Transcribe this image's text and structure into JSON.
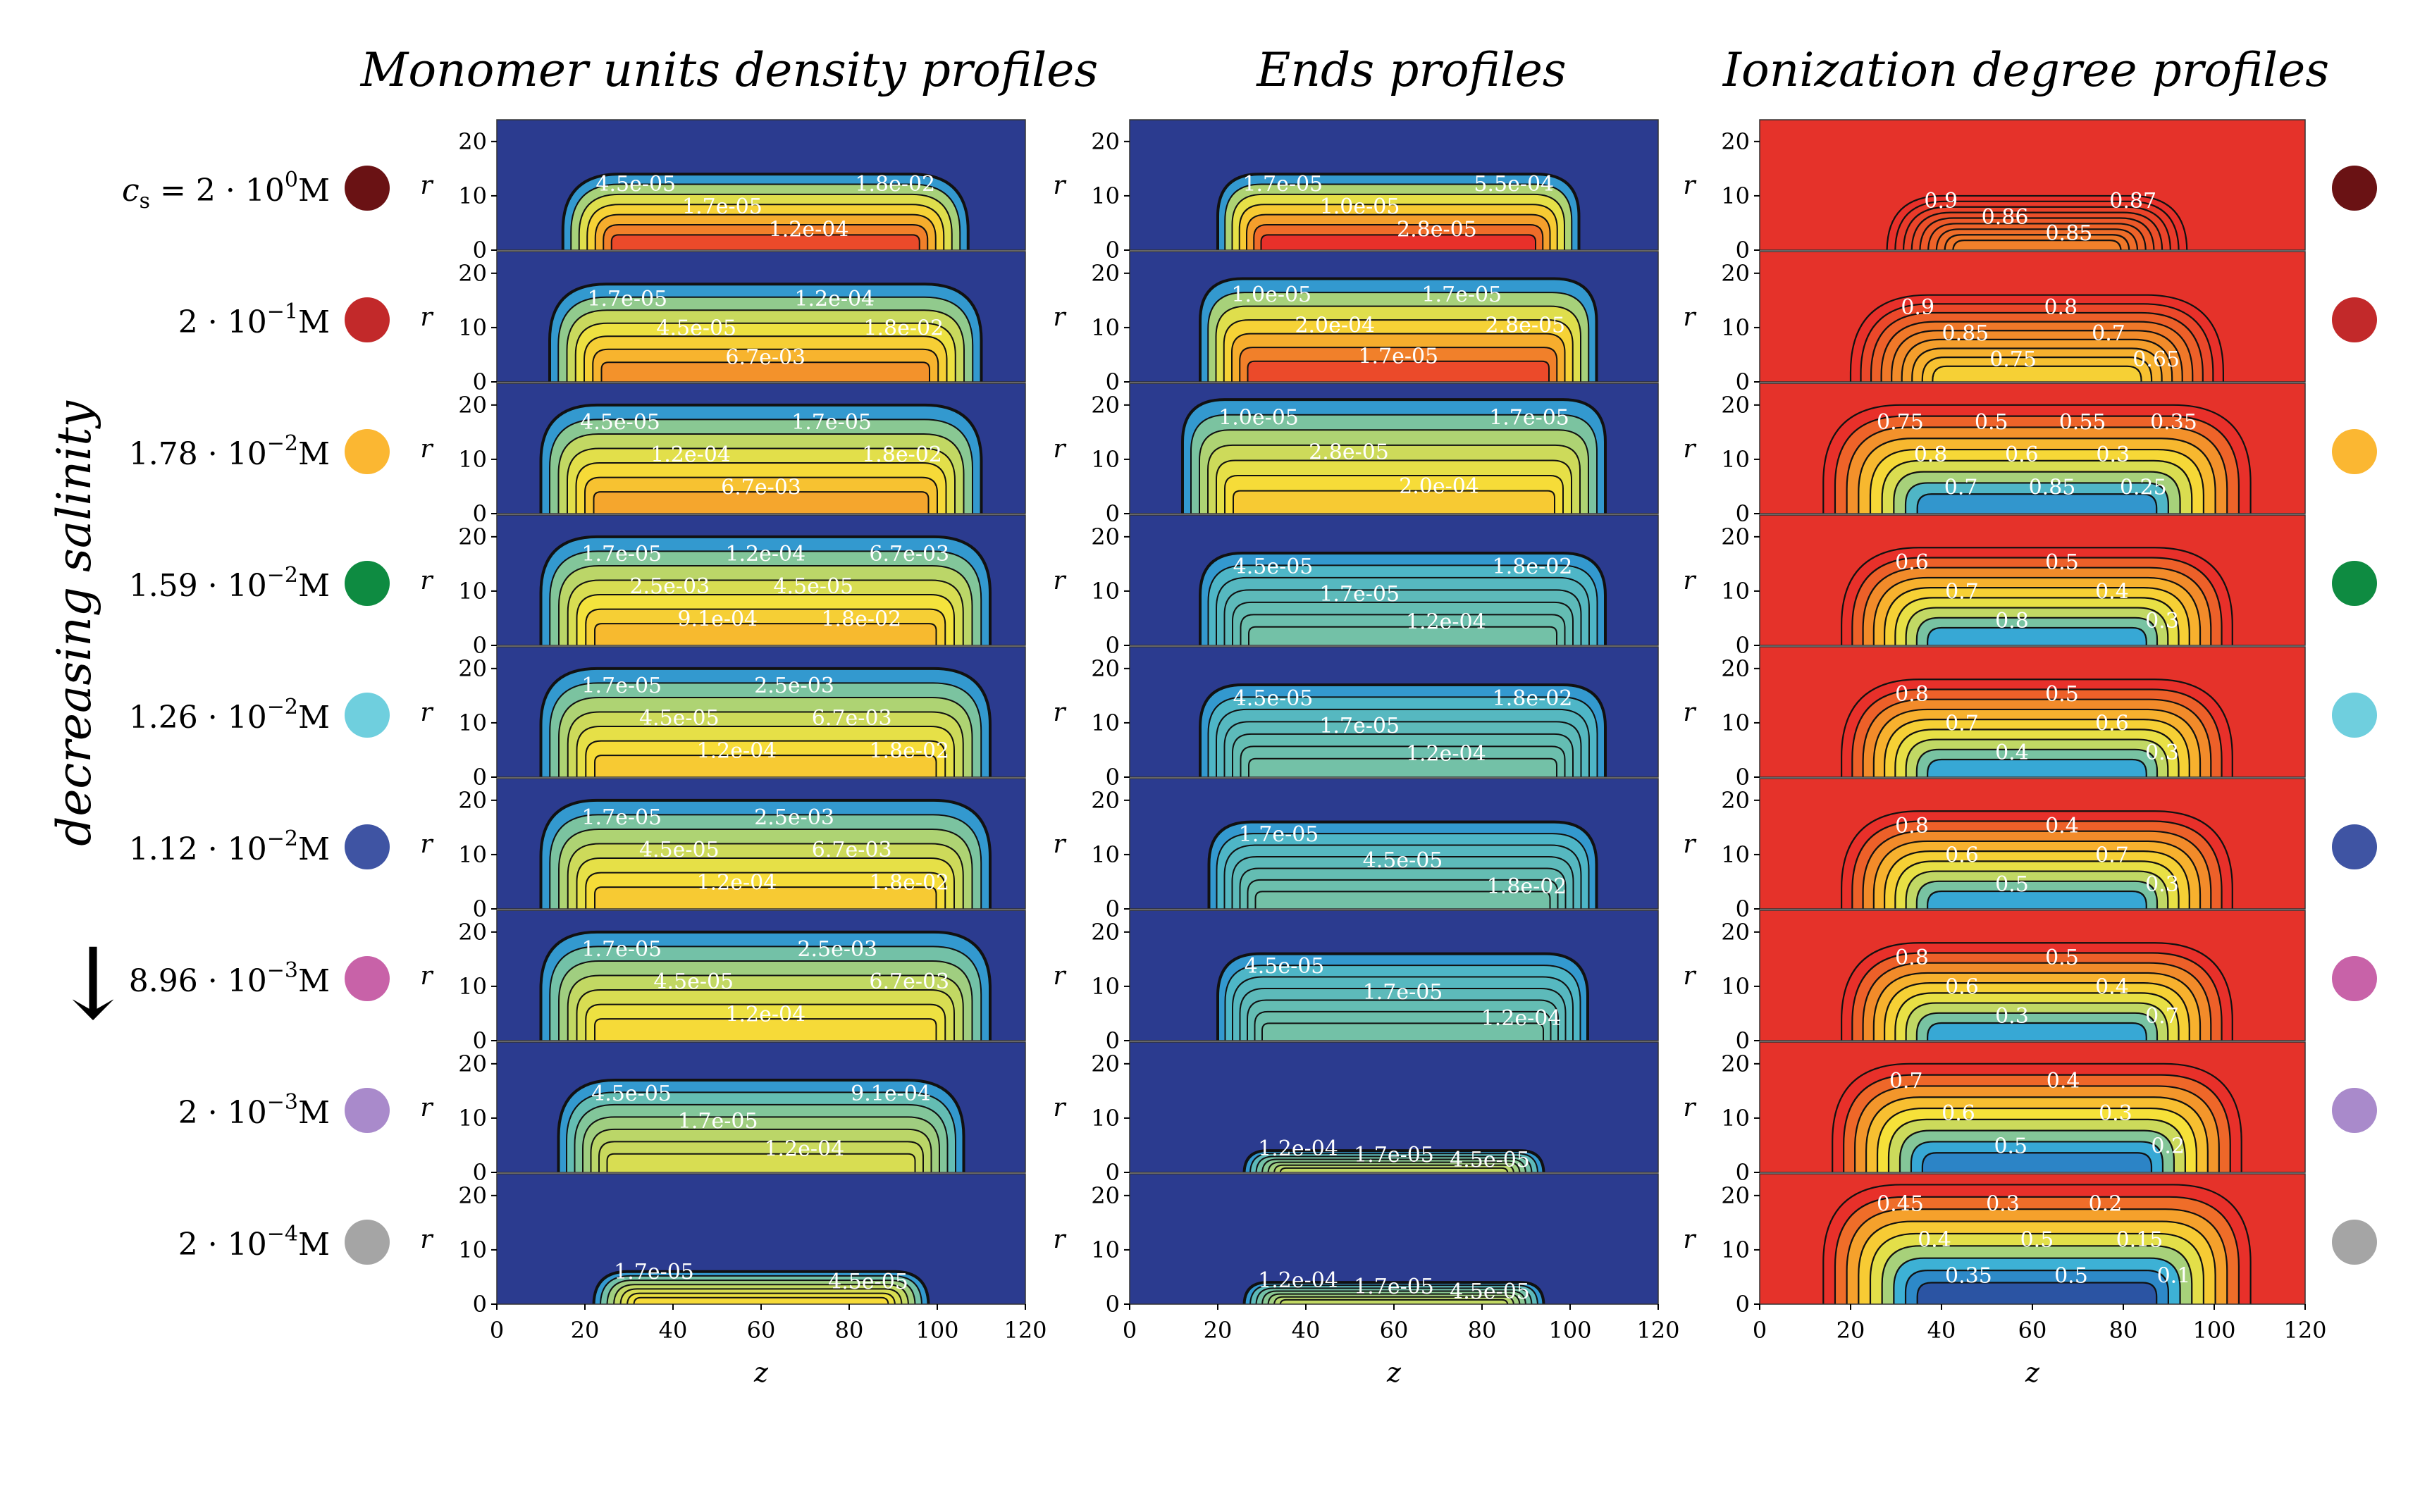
{
  "chart_data": {
    "type": "heatmap",
    "column_titles": [
      "Monomer units density profiles",
      "Ends profiles",
      "Ionization degree profiles"
    ],
    "salinity_axis_label": "decreasing salinity",
    "salinity_arrow": "↓",
    "xlabel": "z",
    "ylabel": "r",
    "x_ticks": [
      "0",
      "20",
      "40",
      "60",
      "80",
      "100",
      "120"
    ],
    "y_ticks": [
      "0",
      "10",
      "20"
    ],
    "xlim": [
      0,
      120
    ],
    "ylim": [
      0,
      24
    ],
    "colormap_low_color": "#2b3b8f",
    "colormap_high_color": "#e8302a",
    "ionization_background_color": "#e5322a",
    "rows": [
      {
        "label_math": "c_s = 2·10^0 M",
        "prefix": "c",
        "sub": "s",
        "mantissa": "= 2 · 10",
        "exp": "0",
        "unit": "M",
        "color": "#6a1214",
        "monomer": {
          "extent": [
            15,
            107
          ],
          "height": 14,
          "core": 0.9,
          "labels": [
            "4.5e-05",
            "1.7e-05",
            "1.2e-04",
            "1.8e-02"
          ]
        },
        "ends": {
          "extent": [
            20,
            102
          ],
          "height": 14,
          "core": 0.95,
          "labels": [
            "1.7e-05",
            "1.0e-05",
            "2.8e-05",
            "5.5e-04"
          ]
        },
        "ionization": {
          "extent": [
            28,
            94
          ],
          "height": 10,
          "min": 0.85,
          "labels": [
            "0.9",
            "0.86",
            "0.85",
            "0.87"
          ]
        }
      },
      {
        "prefix": "",
        "sub": "",
        "mantissa": "2 · 10",
        "exp": "−1",
        "unit": "M",
        "color": "#c2292a",
        "monomer": {
          "extent": [
            12,
            110
          ],
          "height": 18,
          "core": 0.75,
          "labels": [
            "1.7e-05",
            "4.5e-05",
            "6.7e-03",
            "1.2e-04",
            "1.8e-02"
          ]
        },
        "ends": {
          "extent": [
            16,
            106
          ],
          "height": 19,
          "core": 0.9,
          "labels": [
            "1.0e-05",
            "2.0e-04",
            "1.7e-05",
            "1.7e-05",
            "2.8e-05"
          ]
        },
        "ionization": {
          "extent": [
            20,
            102
          ],
          "height": 16,
          "min": 0.65,
          "labels": [
            "0.9",
            "0.85",
            "0.75",
            "0.8",
            "0.7",
            "0.65"
          ]
        }
      },
      {
        "prefix": "",
        "sub": "",
        "mantissa": "1.78 · 10",
        "exp": "−2",
        "unit": "M",
        "color": "#fbb732",
        "monomer": {
          "extent": [
            10,
            110
          ],
          "height": 20,
          "core": 0.7,
          "labels": [
            "4.5e-05",
            "1.2e-04",
            "6.7e-03",
            "1.7e-05",
            "1.8e-02"
          ]
        },
        "ends": {
          "extent": [
            12,
            108
          ],
          "height": 21,
          "core": 0.6,
          "labels": [
            "1.0e-05",
            "2.8e-05",
            "2.0e-04",
            "1.7e-05"
          ]
        },
        "ionization": {
          "extent": [
            14,
            108
          ],
          "height": 20,
          "min": 0.25,
          "labels": [
            "0.75",
            "0.8",
            "0.7",
            "0.5",
            "0.6",
            "0.85",
            "0.55",
            "0.3",
            "0.25",
            "0.35"
          ]
        }
      },
      {
        "prefix": "",
        "sub": "",
        "mantissa": "1.59 · 10",
        "exp": "−2",
        "unit": "M",
        "color": "#0e8b41",
        "monomer": {
          "extent": [
            10,
            112
          ],
          "height": 20,
          "core": 0.65,
          "labels": [
            "1.7e-05",
            "2.5e-03",
            "9.1e-04",
            "1.2e-04",
            "4.5e-05",
            "1.8e-02",
            "6.7e-03"
          ]
        },
        "ends": {
          "extent": [
            16,
            108
          ],
          "height": 17,
          "core": 0.3,
          "labels": [
            "4.5e-05",
            "1.7e-05",
            "1.2e-04",
            "1.8e-02"
          ]
        },
        "ionization": {
          "extent": [
            18,
            104
          ],
          "height": 18,
          "min": 0.3,
          "labels": [
            "0.6",
            "0.7",
            "0.8",
            "0.5",
            "0.4",
            "0.3"
          ]
        }
      },
      {
        "prefix": "",
        "sub": "",
        "mantissa": "1.26 · 10",
        "exp": "−2",
        "unit": "M",
        "color": "#6fcfde",
        "monomer": {
          "extent": [
            10,
            112
          ],
          "height": 20,
          "core": 0.6,
          "labels": [
            "1.7e-05",
            "4.5e-05",
            "1.2e-04",
            "2.5e-03",
            "6.7e-03",
            "1.8e-02"
          ]
        },
        "ends": {
          "extent": [
            16,
            108
          ],
          "height": 17,
          "core": 0.3,
          "labels": [
            "4.5e-05",
            "1.7e-05",
            "1.2e-04",
            "1.8e-02"
          ]
        },
        "ionization": {
          "extent": [
            18,
            104
          ],
          "height": 18,
          "min": 0.3,
          "labels": [
            "0.8",
            "0.7",
            "0.4",
            "0.5",
            "0.6",
            "0.3"
          ]
        }
      },
      {
        "prefix": "",
        "sub": "",
        "mantissa": "1.12 · 10",
        "exp": "−2",
        "unit": "M",
        "color": "#3f54a3",
        "monomer": {
          "extent": [
            10,
            112
          ],
          "height": 20,
          "core": 0.6,
          "labels": [
            "1.7e-05",
            "4.5e-05",
            "1.2e-04",
            "2.5e-03",
            "6.7e-03",
            "1.8e-02"
          ]
        },
        "ends": {
          "extent": [
            18,
            106
          ],
          "height": 16,
          "core": 0.3,
          "labels": [
            "1.7e-05",
            "4.5e-05",
            "1.8e-02"
          ]
        },
        "ionization": {
          "extent": [
            18,
            104
          ],
          "height": 18,
          "min": 0.3,
          "labels": [
            "0.8",
            "0.6",
            "0.5",
            "0.4",
            "0.7",
            "0.3"
          ]
        }
      },
      {
        "prefix": "",
        "sub": "",
        "mantissa": "8.96 · 10",
        "exp": "−3",
        "unit": "M",
        "color": "#c862a8",
        "monomer": {
          "extent": [
            10,
            112
          ],
          "height": 20,
          "core": 0.55,
          "labels": [
            "1.7e-05",
            "4.5e-05",
            "1.2e-04",
            "2.5e-03",
            "6.7e-03"
          ]
        },
        "ends": {
          "extent": [
            20,
            104
          ],
          "height": 16,
          "core": 0.3,
          "labels": [
            "4.5e-05",
            "1.7e-05",
            "1.2e-04"
          ]
        },
        "ionization": {
          "extent": [
            18,
            104
          ],
          "height": 18,
          "min": 0.3,
          "labels": [
            "0.8",
            "0.6",
            "0.3",
            "0.5",
            "0.4",
            "0.7"
          ]
        }
      },
      {
        "prefix": "",
        "sub": "",
        "mantissa": "2 · 10",
        "exp": "−3",
        "unit": "M",
        "color": "#a98acb",
        "monomer": {
          "extent": [
            14,
            106
          ],
          "height": 17,
          "core": 0.45,
          "labels": [
            "4.5e-05",
            "1.7e-05",
            "1.2e-04",
            "9.1e-04"
          ]
        },
        "ends": {
          "extent": [
            26,
            94
          ],
          "height": 4,
          "core": 0.4,
          "labels": [
            "1.2e-04",
            "1.7e-05",
            "4.5e-05"
          ]
        },
        "ionization": {
          "extent": [
            16,
            106
          ],
          "height": 20,
          "min": 0.2,
          "labels": [
            "0.7",
            "0.6",
            "0.5",
            "0.4",
            "0.3",
            "0.2"
          ]
        }
      },
      {
        "prefix": "",
        "sub": "",
        "mantissa": "2 · 10",
        "exp": "−4",
        "unit": "M",
        "color": "#a5a5a5",
        "monomer": {
          "extent": [
            22,
            98
          ],
          "height": 6,
          "core": 0.55,
          "labels": [
            "1.7e-05",
            "4.5e-05"
          ]
        },
        "ends": {
          "extent": [
            26,
            94
          ],
          "height": 4,
          "core": 0.4,
          "labels": [
            "1.2e-04",
            "1.7e-05",
            "4.5e-05"
          ]
        },
        "ionization": {
          "extent": [
            14,
            108
          ],
          "height": 22,
          "min": 0.1,
          "labels": [
            "0.45",
            "0.4",
            "0.35",
            "0.3",
            "0.5",
            "0.5",
            "0.2",
            "0.15",
            "0.1"
          ]
        }
      }
    ]
  }
}
